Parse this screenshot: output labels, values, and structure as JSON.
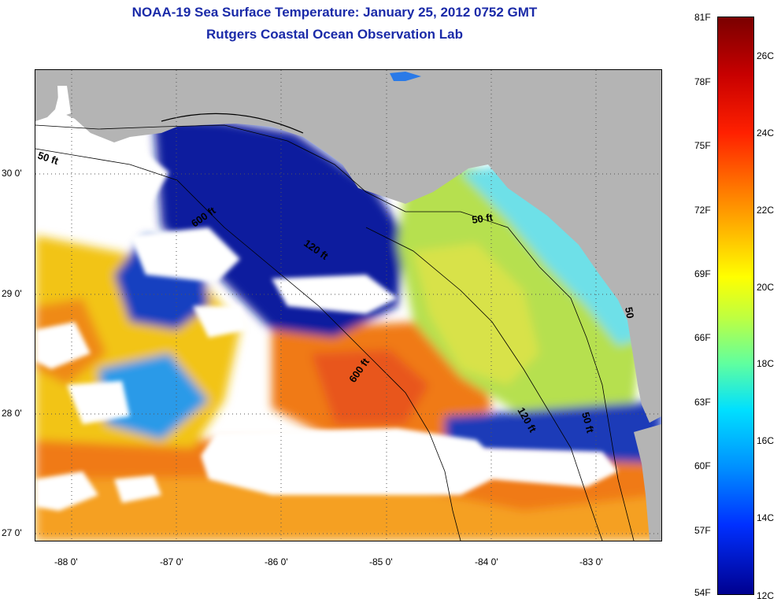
{
  "header": {
    "title_line1": "NOAA-19 Sea Surface Temperature:  January 25, 2012 0752 GMT",
    "title_line2": "Rutgers Coastal Ocean Observation Lab"
  },
  "map": {
    "latitude_labels": [
      "30 0'",
      "29 0'",
      "28 0'",
      "27 0'"
    ],
    "longitude_labels": [
      "-88 0'",
      "-87 0'",
      "-86 0'",
      "-85 0'",
      "-84 0'",
      "-83 0'"
    ],
    "contour_labels": [
      "50 ft",
      "600 ft",
      "120 ft",
      "600 ft",
      "50 ft",
      "120 ft",
      "50 ft",
      "50"
    ],
    "colors": {
      "land": "#b4b4b4",
      "cloud": "#ffffff",
      "cold_water": "#0a1f9e",
      "mid_water": "#2a9ae8",
      "shelf_water": "#6ee0e8",
      "warm_water": "#e8d020",
      "hot_water": "#f07a12"
    }
  },
  "colorbar": {
    "fahrenheit_labels": [
      "81F",
      "78F",
      "75F",
      "72F",
      "69F",
      "66F",
      "63F",
      "60F",
      "57F",
      "54F"
    ],
    "celsius_labels": [
      "26C",
      "24C",
      "22C",
      "20C",
      "18C",
      "16C",
      "14C",
      "12C"
    ]
  }
}
